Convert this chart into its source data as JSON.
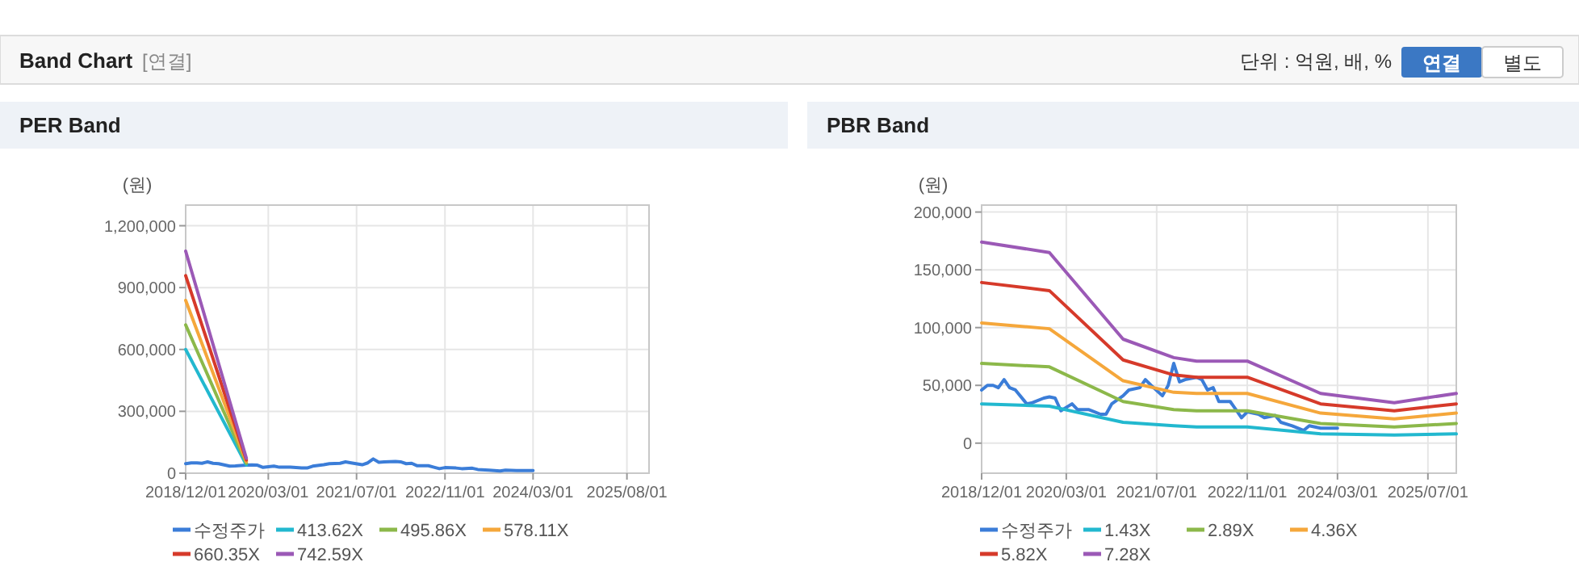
{
  "chart_data": [
    {
      "type": "other",
      "title": "Band Chart",
      "subtitle": "[연결]",
      "annotations": [
        "단위 : 억원, 배, %",
        "연결",
        "별도"
      ]
    },
    {
      "type": "line",
      "title": "PER Band",
      "ylabel": "(원)",
      "xlim": [
        "2018-12-01",
        "2025-12-01"
      ],
      "ylim": [
        0,
        1300000
      ],
      "xticks": [
        {
          "value": "2018-12-01",
          "label": "2018/12/01"
        },
        {
          "value": "2020-03-01",
          "label": "2020/03/01"
        },
        {
          "value": "2021-07-01",
          "label": "2021/07/01"
        },
        {
          "value": "2022-11-01",
          "label": "2022/11/01"
        },
        {
          "value": "2024-03-01",
          "label": "2024/03/01"
        },
        {
          "value": "2025-08-01",
          "label": "2025/08/01"
        }
      ],
      "yticks": [
        0,
        {
          "value": 300000,
          "label": "300,000"
        },
        {
          "value": 600000,
          "label": "600,000"
        },
        {
          "value": 900000,
          "label": "900,000"
        },
        {
          "value": 1200000,
          "label": "1,200,000"
        }
      ],
      "grid": true,
      "legend": "bottom",
      "line_style": "solid",
      "series": [
        {
          "name": "수정주가",
          "color": "#3b7dd8",
          "x": [
            "2018-12",
            "2019-01",
            "2019-02",
            "2019-03",
            "2019-04",
            "2019-05",
            "2019-06",
            "2019-08",
            "2019-09",
            "2019-11",
            "2019-12",
            "2020-01",
            "2020-02",
            "2020-04",
            "2020-05",
            "2020-07",
            "2020-09",
            "2020-10",
            "2020-11",
            "2021-01",
            "2021-02",
            "2021-04",
            "2021-05",
            "2021-06",
            "2021-08",
            "2021-09",
            "2021-10",
            "2021-11",
            "2021-12",
            "2022-02",
            "2022-03",
            "2022-04",
            "2022-05",
            "2022-06",
            "2022-08",
            "2022-09",
            "2022-10",
            "2022-11",
            "2023-01",
            "2023-02",
            "2023-04",
            "2023-05",
            "2023-07",
            "2023-09",
            "2023-10",
            "2023-12",
            "2024-01",
            "2024-03"
          ],
          "values": [
            46000,
            50000,
            50000,
            48000,
            55000,
            48000,
            46000,
            34000,
            35000,
            39000,
            40000,
            39000,
            28000,
            34000,
            29000,
            29000,
            25000,
            25000,
            34000,
            41000,
            46000,
            48000,
            55000,
            50000,
            41000,
            50000,
            69000,
            53000,
            55000,
            57000,
            55000,
            46000,
            48000,
            36000,
            36000,
            29000,
            22000,
            27000,
            25000,
            22000,
            24000,
            18000,
            15000,
            11000,
            15000,
            13000,
            13000,
            13000
          ]
        },
        {
          "name": "413.62X",
          "color": "#22b8cf",
          "x": [
            "2018-12",
            "2019-11"
          ],
          "values": [
            600000,
            40000
          ]
        },
        {
          "name": "495.86X",
          "color": "#8cb84a",
          "x": [
            "2018-12",
            "2019-11"
          ],
          "values": [
            719000,
            48000
          ]
        },
        {
          "name": "578.11X",
          "color": "#f5a73b",
          "x": [
            "2018-12",
            "2019-11"
          ],
          "values": [
            838000,
            56000
          ]
        },
        {
          "name": "660.35X",
          "color": "#d63a2a",
          "x": [
            "2018-12",
            "2019-11"
          ],
          "values": [
            958000,
            64000
          ]
        },
        {
          "name": "742.59X",
          "color": "#9b59b6",
          "x": [
            "2018-12",
            "2019-11"
          ],
          "values": [
            1077000,
            72000
          ]
        }
      ]
    },
    {
      "type": "line",
      "title": "PBR Band",
      "ylabel": "(원)",
      "xlim": [
        "2018-12-01",
        "2025-12-01"
      ],
      "ylim": [
        -26000,
        206000
      ],
      "xticks": [
        {
          "value": "2018-12-01",
          "label": "2018/12/01"
        },
        {
          "value": "2020-03-01",
          "label": "2020/03/01"
        },
        {
          "value": "2021-07-01",
          "label": "2021/07/01"
        },
        {
          "value": "2022-11-01",
          "label": "2022/11/01"
        },
        {
          "value": "2024-03-01",
          "label": "2024/03/01"
        },
        {
          "value": "2025-07-01",
          "label": "2025/07/01"
        }
      ],
      "yticks": [
        0,
        {
          "value": 50000,
          "label": "50,000"
        },
        {
          "value": 100000,
          "label": "100,000"
        },
        {
          "value": 150000,
          "label": "150,000"
        },
        {
          "value": 200000,
          "label": "200,000"
        }
      ],
      "grid": true,
      "legend": "bottom",
      "line_style": "solid",
      "series": [
        {
          "name": "수정주가",
          "color": "#3b7dd8",
          "x": [
            "2018-12",
            "2019-01",
            "2019-02",
            "2019-03",
            "2019-04",
            "2019-05",
            "2019-06",
            "2019-08",
            "2019-09",
            "2019-11",
            "2019-12",
            "2020-01",
            "2020-02",
            "2020-04",
            "2020-05",
            "2020-07",
            "2020-09",
            "2020-10",
            "2020-11",
            "2021-01",
            "2021-02",
            "2021-04",
            "2021-05",
            "2021-06",
            "2021-08",
            "2021-09",
            "2021-10",
            "2021-11",
            "2021-12",
            "2022-02",
            "2022-03",
            "2022-04",
            "2022-05",
            "2022-06",
            "2022-08",
            "2022-09",
            "2022-10",
            "2022-11",
            "2023-01",
            "2023-02",
            "2023-04",
            "2023-05",
            "2023-07",
            "2023-09",
            "2023-10",
            "2023-12",
            "2024-01",
            "2024-03"
          ],
          "values": [
            46000,
            50000,
            50000,
            48000,
            55000,
            48000,
            46000,
            34000,
            35000,
            39000,
            40000,
            39000,
            28000,
            34000,
            29000,
            29000,
            25000,
            25000,
            34000,
            41000,
            46000,
            48000,
            55000,
            50000,
            41000,
            50000,
            69000,
            53000,
            55000,
            57000,
            55000,
            46000,
            48000,
            36000,
            36000,
            29000,
            22000,
            27000,
            25000,
            22000,
            24000,
            18000,
            15000,
            11000,
            15000,
            13000,
            13000,
            13000
          ]
        },
        {
          "name": "1.43X",
          "color": "#22b8cf",
          "x": [
            "2018-12",
            "2019-12",
            "2021-01",
            "2021-10",
            "2022-02",
            "2022-11",
            "2023-12",
            "2025-01",
            "2025-12"
          ],
          "values": [
            34000,
            32000,
            18000,
            15000,
            14000,
            14000,
            8000,
            7000,
            8000
          ]
        },
        {
          "name": "2.89X",
          "color": "#8cb84a",
          "x": [
            "2018-12",
            "2019-12",
            "2021-01",
            "2021-10",
            "2022-02",
            "2022-11",
            "2023-12",
            "2025-01",
            "2025-12"
          ],
          "values": [
            69000,
            66000,
            36000,
            29000,
            28000,
            28000,
            17000,
            14000,
            17000
          ]
        },
        {
          "name": "4.36X",
          "color": "#f5a73b",
          "x": [
            "2018-12",
            "2019-12",
            "2021-01",
            "2021-10",
            "2022-02",
            "2022-11",
            "2023-12",
            "2025-01",
            "2025-12"
          ],
          "values": [
            104000,
            99000,
            54000,
            44000,
            43000,
            43000,
            26000,
            21000,
            26000
          ]
        },
        {
          "name": "5.82X",
          "color": "#d63a2a",
          "x": [
            "2018-12",
            "2019-12",
            "2021-01",
            "2021-10",
            "2022-02",
            "2022-11",
            "2023-12",
            "2025-01",
            "2025-12"
          ],
          "values": [
            139000,
            132000,
            72000,
            59000,
            57000,
            57000,
            34000,
            28000,
            34000
          ]
        },
        {
          "name": "7.28X",
          "color": "#9b59b6",
          "x": [
            "2018-12",
            "2019-12",
            "2021-01",
            "2021-10",
            "2022-02",
            "2022-11",
            "2023-12",
            "2025-01",
            "2025-12"
          ],
          "values": [
            174000,
            165000,
            90000,
            74000,
            71000,
            71000,
            43000,
            35000,
            43000
          ]
        }
      ]
    }
  ]
}
